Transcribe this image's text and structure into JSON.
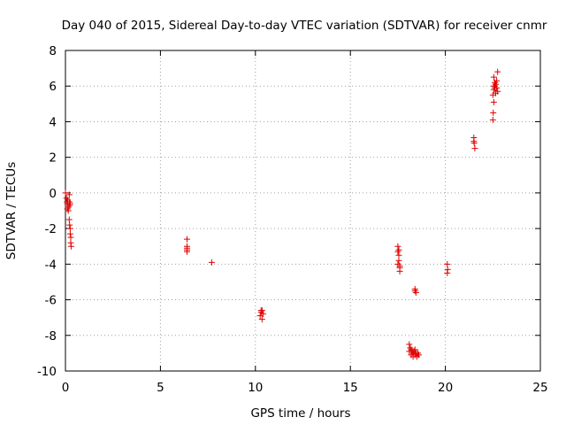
{
  "chart_data": {
    "type": "scatter",
    "title": "Day 040 of 2015, Sidereal Day-to-day VTEC variation (SDTVAR) for receiver cnmr",
    "xlabel": "GPS time / hours",
    "ylabel": "SDTVAR / TECUs",
    "xlim": [
      0,
      25
    ],
    "ylim": [
      -10,
      8
    ],
    "xticks": [
      0,
      5,
      10,
      15,
      20,
      25
    ],
    "xtick_labels": [
      "0",
      "5",
      "10",
      "15",
      "20",
      "25"
    ],
    "yticks": [
      -10,
      -8,
      -6,
      -4,
      -2,
      0,
      2,
      4,
      6,
      8
    ],
    "ytick_labels": [
      "-10",
      "-8",
      "-6",
      "-4",
      "-2",
      "0",
      "2",
      "4",
      "6",
      "8"
    ],
    "grid": true,
    "marker": "+",
    "color": "#e00000",
    "series": [
      {
        "name": "SDTVAR",
        "points": [
          [
            0.0,
            0.0
          ],
          [
            0.05,
            -0.3
          ],
          [
            0.08,
            -0.5
          ],
          [
            0.1,
            -0.6
          ],
          [
            0.12,
            -0.4
          ],
          [
            0.15,
            -0.8
          ],
          [
            0.2,
            -0.1
          ],
          [
            0.2,
            -0.5
          ],
          [
            0.22,
            -0.7
          ],
          [
            0.25,
            -0.6
          ],
          [
            0.15,
            -1.0
          ],
          [
            0.1,
            -0.9
          ],
          [
            0.2,
            -1.5
          ],
          [
            0.22,
            -1.8
          ],
          [
            0.25,
            -2.0
          ],
          [
            0.25,
            -2.3
          ],
          [
            0.28,
            -2.5
          ],
          [
            0.28,
            -2.8
          ],
          [
            0.3,
            -3.0
          ],
          [
            6.4,
            -2.6
          ],
          [
            6.4,
            -3.0
          ],
          [
            6.4,
            -3.1
          ],
          [
            6.4,
            -3.2
          ],
          [
            6.4,
            -3.3
          ],
          [
            7.7,
            -3.9
          ],
          [
            10.3,
            -6.7
          ],
          [
            10.35,
            -6.6
          ],
          [
            10.4,
            -6.8
          ],
          [
            10.35,
            -7.1
          ],
          [
            10.25,
            -6.9
          ],
          [
            10.3,
            -6.6
          ],
          [
            17.5,
            -3.0
          ],
          [
            17.5,
            -3.3
          ],
          [
            17.55,
            -3.5
          ],
          [
            17.55,
            -3.8
          ],
          [
            17.6,
            -4.1
          ],
          [
            17.6,
            -4.2
          ],
          [
            17.6,
            -4.4
          ],
          [
            17.55,
            -3.2
          ],
          [
            17.5,
            -4.0
          ],
          [
            18.4,
            -5.4
          ],
          [
            18.45,
            -5.6
          ],
          [
            18.4,
            -5.5
          ],
          [
            18.1,
            -8.5
          ],
          [
            18.15,
            -8.7
          ],
          [
            18.2,
            -8.8
          ],
          [
            18.25,
            -8.9
          ],
          [
            18.3,
            -9.0
          ],
          [
            18.35,
            -8.9
          ],
          [
            18.4,
            -9.1
          ],
          [
            18.45,
            -9.0
          ],
          [
            18.5,
            -9.2
          ],
          [
            18.55,
            -9.0
          ],
          [
            18.2,
            -9.1
          ],
          [
            18.3,
            -9.2
          ],
          [
            18.1,
            -8.9
          ],
          [
            18.4,
            -8.8
          ],
          [
            18.6,
            -9.1
          ],
          [
            20.1,
            -4.0
          ],
          [
            20.12,
            -4.3
          ],
          [
            20.1,
            -4.5
          ],
          [
            21.5,
            3.1
          ],
          [
            21.52,
            2.8
          ],
          [
            21.55,
            2.5
          ],
          [
            21.5,
            2.9
          ],
          [
            22.5,
            4.1
          ],
          [
            22.52,
            4.5
          ],
          [
            22.55,
            5.1
          ],
          [
            22.5,
            5.5
          ],
          [
            22.55,
            5.8
          ],
          [
            22.6,
            6.0
          ],
          [
            22.6,
            6.2
          ],
          [
            22.65,
            6.1
          ],
          [
            22.7,
            5.9
          ],
          [
            22.75,
            5.7
          ],
          [
            22.55,
            6.5
          ],
          [
            22.75,
            6.8
          ],
          [
            22.6,
            5.9
          ],
          [
            22.7,
            6.3
          ],
          [
            22.55,
            6.0
          ],
          [
            22.65,
            5.6
          ]
        ]
      }
    ]
  }
}
